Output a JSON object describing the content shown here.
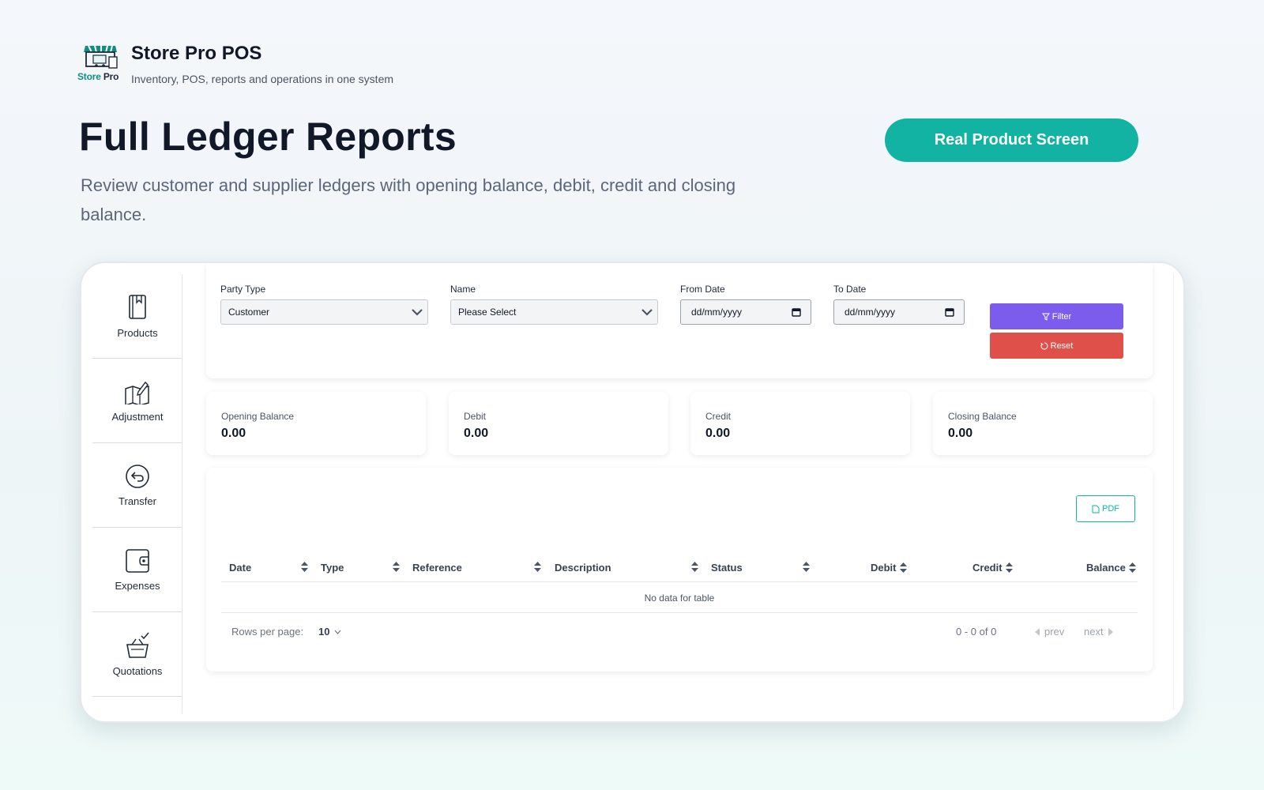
{
  "brand": {
    "logo_text_a": "Store",
    "logo_text_b": "Pro",
    "title": "Store Pro POS",
    "subtitle": "Inventory, POS, reports and operations in one system"
  },
  "hero": {
    "title": "Full Ledger Reports",
    "subtitle": "Review customer and supplier ledgers with opening balance, debit, credit and closing balance.",
    "cta_label": "Real Product Screen"
  },
  "colors": {
    "accent": "#13b3a3",
    "filter": "#7c5cec",
    "reset": "#e0504b"
  },
  "sidebar": {
    "items": [
      {
        "label": "Products",
        "icon": "book-icon"
      },
      {
        "label": "Adjustment",
        "icon": "map-edit-icon"
      },
      {
        "label": "Transfer",
        "icon": "return-arrow-icon"
      },
      {
        "label": "Expenses",
        "icon": "wallet-icon"
      },
      {
        "label": "Quotations",
        "icon": "basket-check-icon"
      }
    ]
  },
  "filters": {
    "party_type": {
      "label": "Party Type",
      "value": "Customer"
    },
    "name": {
      "label": "Name",
      "value": "Please Select"
    },
    "from_date": {
      "label": "From Date",
      "placeholder": "dd/mm/yyyy"
    },
    "to_date": {
      "label": "To Date",
      "placeholder": "dd/mm/yyyy"
    },
    "filter_label": "Filter",
    "reset_label": "Reset"
  },
  "stats": [
    {
      "label": "Opening Balance",
      "value": "0.00"
    },
    {
      "label": "Debit",
      "value": "0.00"
    },
    {
      "label": "Credit",
      "value": "0.00"
    },
    {
      "label": "Closing Balance",
      "value": "0.00"
    }
  ],
  "table": {
    "pdf_label": "PDF",
    "columns": [
      "Date",
      "Type",
      "Reference",
      "Description",
      "Status",
      "Debit",
      "Credit",
      "Balance"
    ],
    "empty_text": "No data for table",
    "rows_per_page_label": "Rows per page:",
    "rows_per_page": "10",
    "range_text": "0 - 0 of 0",
    "prev_label": "prev",
    "next_label": "next"
  }
}
